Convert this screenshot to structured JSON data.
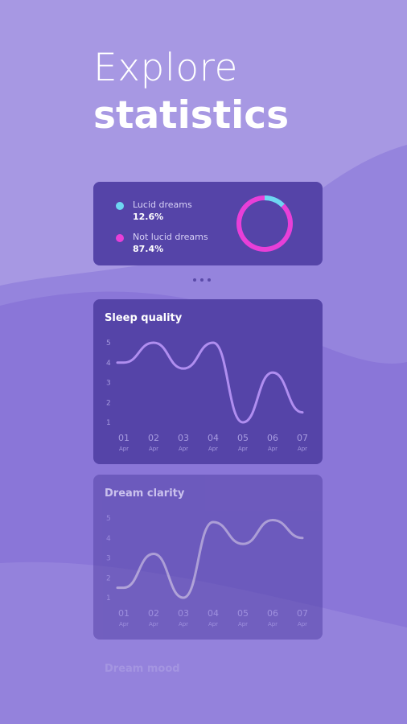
{
  "headline": {
    "line1": "Explore",
    "line2": "statistics"
  },
  "pie_card": {
    "items": [
      {
        "name": "Lucid dreams",
        "pct": "12.6%",
        "color": "#6ed6f2"
      },
      {
        "name": "Not lucid dreams",
        "pct": "87.4%",
        "color": "#e83fd8"
      }
    ]
  },
  "chart_data": [
    {
      "type": "pie",
      "labels": [
        "Lucid dreams",
        "Not lucid dreams"
      ],
      "values": [
        12.6,
        87.4
      ],
      "colors": [
        "#6ed6f2",
        "#e83fd8"
      ]
    },
    {
      "type": "line",
      "title": "Sleep quality",
      "x": [
        "01",
        "02",
        "03",
        "04",
        "05",
        "06",
        "07"
      ],
      "x_sub": [
        "Apr",
        "Apr",
        "Apr",
        "Apr",
        "Apr",
        "Apr",
        "Apr"
      ],
      "series": [
        {
          "values": [
            4,
            5,
            3.7,
            5,
            1,
            3.5,
            1.5
          ]
        }
      ],
      "yticks": [
        1,
        2,
        3,
        4,
        5
      ],
      "ylim": [
        1,
        5
      ],
      "line_color": "#b08ef0"
    },
    {
      "type": "line",
      "title": "Dream clarity",
      "x": [
        "01",
        "02",
        "03",
        "04",
        "05",
        "06",
        "07"
      ],
      "x_sub": [
        "Apr",
        "Apr",
        "Apr",
        "Apr",
        "Apr",
        "Apr",
        "Apr"
      ],
      "series": [
        {
          "values": [
            1.5,
            3.2,
            1,
            4.8,
            3.7,
            4.9,
            4
          ]
        }
      ],
      "yticks": [
        1,
        2,
        3,
        4,
        5
      ],
      "ylim": [
        1,
        5
      ],
      "line_color": "#c9bfd6"
    }
  ],
  "ghost_title": "Dream mood"
}
